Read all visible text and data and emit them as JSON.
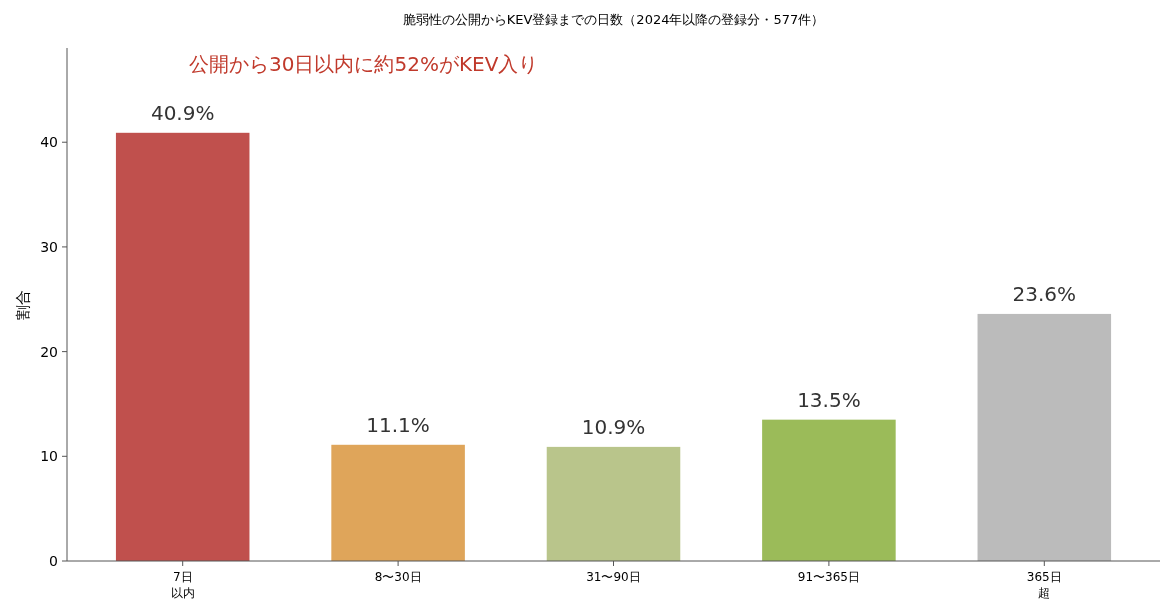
{
  "chart_data": {
    "type": "bar",
    "title": "脆弱性の公開からKEV登録までの日数（2024年以降の登録分・577件）",
    "ylabel": "割合",
    "categories": [
      "7日以内",
      "8〜30日",
      "31〜90日",
      "91〜365日",
      "365日超"
    ],
    "values": [
      40.9,
      11.1,
      10.9,
      13.5,
      23.6
    ],
    "colors": [
      "#c0504d",
      "#dfa55a",
      "#b9c58b",
      "#9bbb59",
      "#bbbbbb"
    ],
    "value_labels": [
      "40.9%",
      "11.1%",
      "10.9%",
      "13.5%",
      "23.6%"
    ],
    "annotations": [
      "公開から30日以内に約52%がKEV入り"
    ],
    "ylim": [
      0,
      49
    ],
    "yticks": [
      0,
      10,
      20,
      30,
      40
    ],
    "grid": false
  }
}
